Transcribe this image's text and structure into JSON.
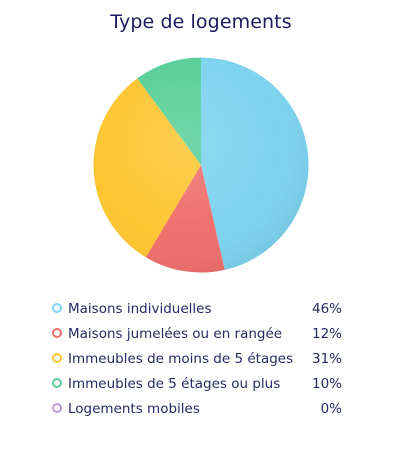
{
  "chart_data": {
    "type": "pie",
    "title": "Type de logements",
    "categories": [
      "Maisons individuelles",
      "Maisons jumelées ou en rangée",
      "Immeubles de moins de 5 étages",
      "Immeubles de 5 étages ou plus",
      "Logements mobiles"
    ],
    "values": [
      46,
      12,
      31,
      10,
      0
    ],
    "value_labels": [
      "46%",
      "12%",
      "31%",
      "10%",
      "0%"
    ],
    "colors": [
      "#7dd3ef",
      "#ef6f6c",
      "#fdc530",
      "#58cf98",
      "#b99bd1"
    ],
    "legend_placement": "bottom"
  }
}
